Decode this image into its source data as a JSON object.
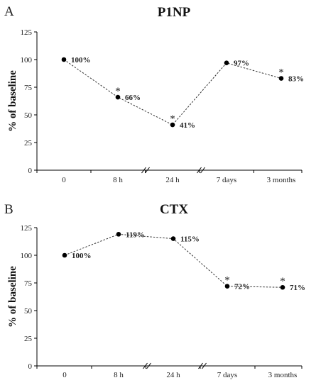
{
  "chart_data": [
    {
      "type": "line",
      "panel": "A",
      "title": "P1NP",
      "xlabel": "",
      "ylabel": "% of baseline",
      "categories": [
        "0",
        "8 h",
        "24 h",
        "7 days",
        "3 months"
      ],
      "values": [
        100,
        66,
        41,
        97,
        83
      ],
      "data_labels": [
        "100%",
        "66%",
        "41%",
        "97%",
        "83%"
      ],
      "significance": [
        false,
        true,
        true,
        false,
        true
      ],
      "significance_marker": "*",
      "ylim": [
        0,
        125
      ],
      "yticks": [
        "0",
        "25",
        "50",
        "75",
        "100",
        "125"
      ],
      "axis_breaks_after": [
        1,
        2
      ],
      "grid": false,
      "legend": "none"
    },
    {
      "type": "line",
      "panel": "B",
      "title": "CTX",
      "xlabel": "",
      "ylabel": "% of baseline",
      "categories": [
        "0",
        "8 h",
        "24 h",
        "7 days",
        "3 months"
      ],
      "values": [
        100,
        119,
        115,
        72,
        71
      ],
      "data_labels": [
        "100%",
        "119%",
        "115%",
        "72%",
        "71%"
      ],
      "significance": [
        false,
        false,
        false,
        true,
        true
      ],
      "significance_marker": "*",
      "ylim": [
        0,
        125
      ],
      "yticks": [
        "0",
        "25",
        "50",
        "75",
        "100",
        "125"
      ],
      "axis_breaks_after": [
        1,
        2
      ],
      "grid": false,
      "legend": "none"
    }
  ]
}
